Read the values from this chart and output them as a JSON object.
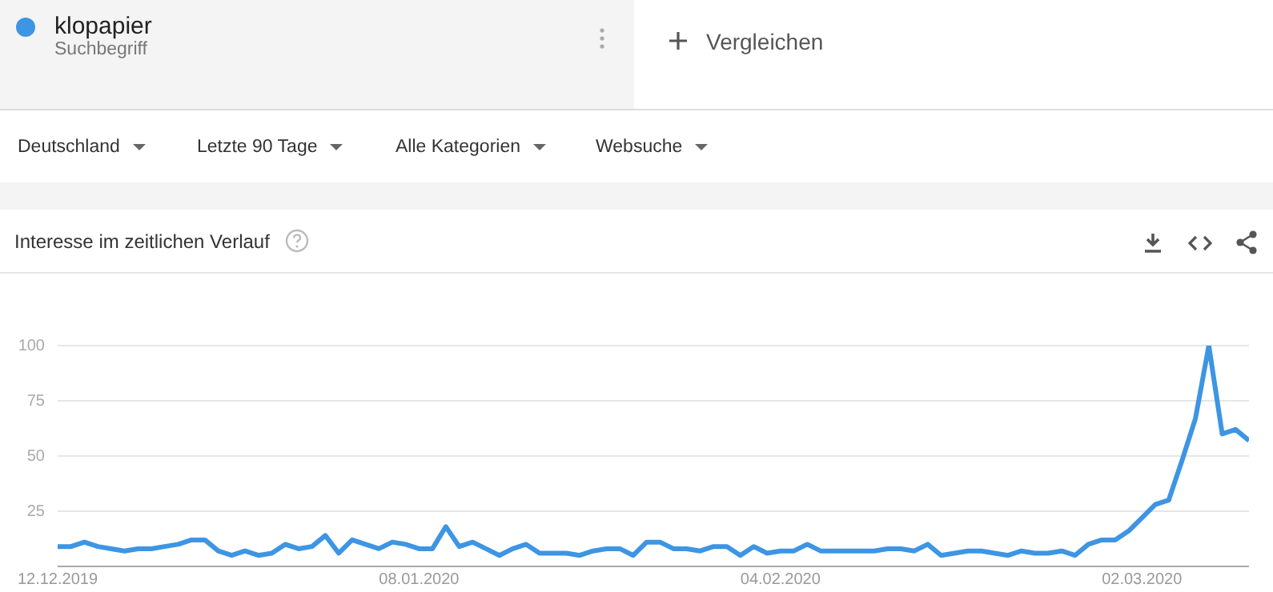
{
  "chart_data": {
    "type": "line",
    "title": "Interesse im zeitlichen Verlauf",
    "annotations": [
      "Suchbegriff",
      "Vergleichen",
      "Deutschland",
      "Letzte 90 Tage",
      "Alle Kategorien",
      "Websuche"
    ],
    "legend": "top left",
    "grid": "y",
    "marker": "none",
    "line_style": "solid",
    "x": [
      "2019-12-12",
      "2019-12-13",
      "2019-12-14",
      "2019-12-15",
      "2019-12-16",
      "2019-12-17",
      "2019-12-18",
      "2019-12-19",
      "2019-12-20",
      "2019-12-21",
      "2019-12-22",
      "2019-12-23",
      "2019-12-24",
      "2019-12-25",
      "2019-12-26",
      "2019-12-27",
      "2019-12-28",
      "2019-12-29",
      "2019-12-30",
      "2019-12-31",
      "2020-01-01",
      "2020-01-02",
      "2020-01-03",
      "2020-01-04",
      "2020-01-05",
      "2020-01-06",
      "2020-01-07",
      "2020-01-08",
      "2020-01-09",
      "2020-01-10",
      "2020-01-11",
      "2020-01-12",
      "2020-01-13",
      "2020-01-14",
      "2020-01-15",
      "2020-01-16",
      "2020-01-17",
      "2020-01-18",
      "2020-01-19",
      "2020-01-20",
      "2020-01-21",
      "2020-01-22",
      "2020-01-23",
      "2020-01-24",
      "2020-01-25",
      "2020-01-26",
      "2020-01-27",
      "2020-01-28",
      "2020-01-29",
      "2020-01-30",
      "2020-01-31",
      "2020-02-01",
      "2020-02-02",
      "2020-02-03",
      "2020-02-04",
      "2020-02-05",
      "2020-02-06",
      "2020-02-07",
      "2020-02-08",
      "2020-02-09",
      "2020-02-10",
      "2020-02-11",
      "2020-02-12",
      "2020-02-13",
      "2020-02-14",
      "2020-02-15",
      "2020-02-16",
      "2020-02-17",
      "2020-02-18",
      "2020-02-19",
      "2020-02-20",
      "2020-02-21",
      "2020-02-22",
      "2020-02-23",
      "2020-02-24",
      "2020-02-25",
      "2020-02-26",
      "2020-02-27",
      "2020-02-28",
      "2020-02-29",
      "2020-03-01",
      "2020-03-02",
      "2020-03-03",
      "2020-03-04",
      "2020-03-05",
      "2020-03-06",
      "2020-03-07",
      "2020-03-08",
      "2020-03-09",
      "2020-03-10"
    ],
    "series": [
      {
        "name": "klopapier",
        "color": "#3d95e3",
        "values": [
          9,
          9,
          11,
          9,
          8,
          7,
          8,
          8,
          9,
          10,
          12,
          12,
          7,
          5,
          7,
          5,
          6,
          10,
          8,
          9,
          14,
          6,
          12,
          10,
          8,
          11,
          10,
          8,
          8,
          18,
          9,
          11,
          8,
          5,
          8,
          10,
          6,
          6,
          6,
          5,
          7,
          8,
          8,
          5,
          11,
          11,
          8,
          8,
          7,
          9,
          9,
          5,
          9,
          6,
          7,
          7,
          10,
          7,
          7,
          7,
          7,
          7,
          8,
          8,
          7,
          10,
          5,
          6,
          7,
          7,
          6,
          5,
          7,
          6,
          6,
          7,
          5,
          10,
          12,
          12,
          16,
          22,
          28,
          30,
          48,
          67,
          100,
          60,
          62,
          57
        ]
      }
    ],
    "xlim": [
      "2019-12-12",
      "2020-03-10"
    ],
    "xticks": [
      {
        "value": "2019-12-12",
        "label": "12.12.2019"
      },
      {
        "value": "2020-01-08",
        "label": "08.01.2020"
      },
      {
        "value": "2020-02-04",
        "label": "04.02.2020"
      },
      {
        "value": "2020-03-02",
        "label": "02.03.2020"
      }
    ],
    "ylim": [
      0,
      100
    ],
    "yticks": [
      {
        "value": 0,
        "label": null
      },
      25,
      50,
      75,
      100
    ]
  }
}
